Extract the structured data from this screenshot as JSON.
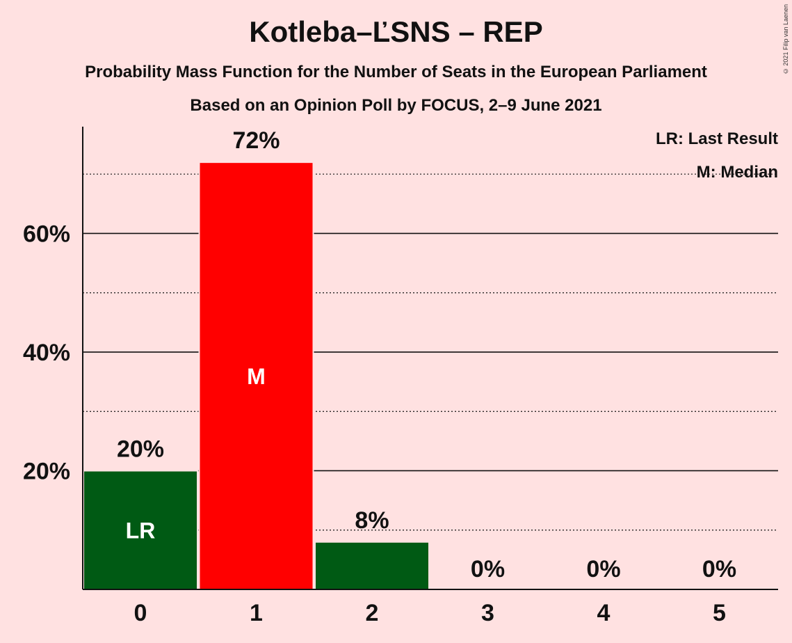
{
  "chart_data": {
    "type": "bar",
    "title": "Kotleba–ĽSNS – REP",
    "subtitle": "Probability Mass Function for the Number of Seats in the European Parliament",
    "subtitle2": "Based on an Opinion Poll by FOCUS, 2–9 June 2021",
    "categories": [
      "0",
      "1",
      "2",
      "3",
      "4",
      "5"
    ],
    "values": [
      20,
      72,
      8,
      0,
      0,
      0
    ],
    "value_labels": [
      "20%",
      "72%",
      "8%",
      "0%",
      "0%",
      "0%"
    ],
    "bar_markers": [
      "LR",
      "M",
      "",
      "",
      "",
      ""
    ],
    "bar_colors": [
      "#005A14",
      "#FF0000",
      "#005A14",
      "#005A14",
      "#005A14",
      "#005A14"
    ],
    "ylim": [
      0,
      78
    ],
    "yticks": [
      20,
      40,
      60
    ],
    "ytick_labels": [
      "20%",
      "40%",
      "60%"
    ],
    "minor_gridlines": [
      10,
      30,
      50,
      70
    ],
    "legend": {
      "lr": "LR: Last Result",
      "m": "M: Median",
      "placement": "top-right"
    }
  },
  "copyright": "© 2021 Filip van Laenen"
}
